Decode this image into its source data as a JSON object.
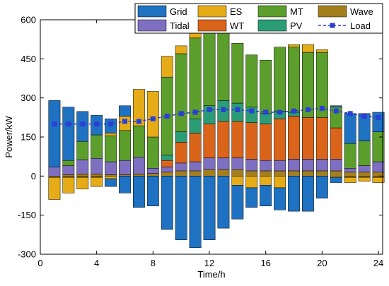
{
  "chart_data": {
    "type": "bar",
    "stacked": true,
    "title": "",
    "xlabel": "Time/h",
    "ylabel": "Power/kW",
    "xlim": [
      0,
      24.3
    ],
    "ylim": [
      -300,
      600
    ],
    "xticks": [
      0,
      4,
      8,
      12,
      16,
      20,
      24
    ],
    "yticks": [
      -300,
      -150,
      0,
      150,
      300,
      450,
      600
    ],
    "grid": false,
    "legend_position": "top-right",
    "x": [
      1,
      2,
      3,
      4,
      5,
      6,
      7,
      8,
      9,
      10,
      11,
      12,
      13,
      14,
      15,
      16,
      17,
      18,
      19,
      20,
      21,
      22,
      23,
      24
    ],
    "positive_series": [
      {
        "name": "Wave",
        "color": "#a57f1e",
        "values": [
          0,
          5,
          8,
          8,
          5,
          5,
          8,
          10,
          15,
          20,
          20,
          25,
          25,
          25,
          20,
          20,
          20,
          20,
          20,
          20,
          20,
          15,
          15,
          15
        ]
      },
      {
        "name": "Tidal",
        "color": "#7e6fc1",
        "values": [
          35,
          35,
          55,
          60,
          50,
          55,
          65,
          20,
          20,
          30,
          35,
          45,
          45,
          45,
          45,
          40,
          40,
          45,
          45,
          45,
          45,
          15,
          25,
          40
        ]
      },
      {
        "name": "WT",
        "color": "#d9641a",
        "values": [
          0,
          0,
          0,
          0,
          0,
          0,
          0,
          0,
          25,
          80,
          110,
          130,
          140,
          140,
          140,
          140,
          160,
          165,
          160,
          160,
          120,
          0,
          0,
          0
        ]
      },
      {
        "name": "PV",
        "color": "#2a9d77",
        "values": [
          0,
          0,
          0,
          0,
          0,
          0,
          0,
          0,
          20,
          40,
          55,
          70,
          80,
          70,
          60,
          40,
          30,
          15,
          0,
          0,
          0,
          0,
          0,
          0
        ]
      },
      {
        "name": "MT",
        "color": "#5c9e2b",
        "values": [
          0,
          20,
          70,
          90,
          100,
          115,
          120,
          120,
          300,
          300,
          310,
          295,
          290,
          230,
          200,
          205,
          245,
          250,
          250,
          250,
          80,
          95,
          95,
          115
        ]
      },
      {
        "name": "ES",
        "color": "#e5ac17",
        "values": [
          0,
          0,
          0,
          0,
          10,
          55,
          140,
          175,
          80,
          30,
          30,
          30,
          10,
          0,
          0,
          0,
          0,
          10,
          30,
          10,
          0,
          0,
          0,
          0
        ]
      },
      {
        "name": "Grid",
        "color": "#1f72c1",
        "values": [
          255,
          205,
          115,
          75,
          55,
          40,
          0,
          0,
          0,
          0,
          0,
          0,
          0,
          0,
          0,
          0,
          0,
          0,
          0,
          0,
          5,
          115,
          105,
          75
        ]
      }
    ],
    "negative_series": [
      {
        "name": "Wave",
        "color": "#a57f1e",
        "values": [
          -5,
          -5,
          -5,
          -5,
          0,
          0,
          0,
          0,
          0,
          0,
          0,
          0,
          0,
          0,
          0,
          0,
          0,
          0,
          0,
          0,
          0,
          -5,
          -5,
          -5
        ]
      },
      {
        "name": "ES",
        "color": "#e5ac17",
        "values": [
          -85,
          -60,
          -45,
          -35,
          -10,
          0,
          0,
          0,
          0,
          0,
          0,
          0,
          0,
          -35,
          -45,
          -35,
          -45,
          0,
          0,
          0,
          -5,
          -20,
          -15,
          -20
        ]
      },
      {
        "name": "Grid",
        "color": "#1f72c1",
        "values": [
          0,
          0,
          0,
          0,
          -30,
          -65,
          -120,
          -115,
          -205,
          -245,
          -275,
          -245,
          -200,
          -130,
          -75,
          -80,
          -85,
          -135,
          -135,
          -85,
          -20,
          0,
          0,
          0
        ]
      }
    ],
    "load": {
      "name": "Load",
      "color": "#2b3fd6",
      "values": [
        200,
        200,
        200,
        200,
        200,
        210,
        210,
        220,
        230,
        240,
        245,
        255,
        255,
        255,
        250,
        245,
        245,
        250,
        255,
        260,
        250,
        240,
        230,
        225
      ]
    },
    "legend": [
      {
        "name": "Grid",
        "color": "#1f72c1",
        "kind": "patch"
      },
      {
        "name": "ES",
        "color": "#e5ac17",
        "kind": "patch"
      },
      {
        "name": "MT",
        "color": "#5c9e2b",
        "kind": "patch"
      },
      {
        "name": "Wave",
        "color": "#a57f1e",
        "kind": "patch"
      },
      {
        "name": "Tidal",
        "color": "#7e6fc1",
        "kind": "patch"
      },
      {
        "name": "WT",
        "color": "#d9641a",
        "kind": "patch"
      },
      {
        "name": "PV",
        "color": "#2a9d77",
        "kind": "patch"
      },
      {
        "name": "Load",
        "color": "#2b3fd6",
        "kind": "line"
      }
    ]
  }
}
